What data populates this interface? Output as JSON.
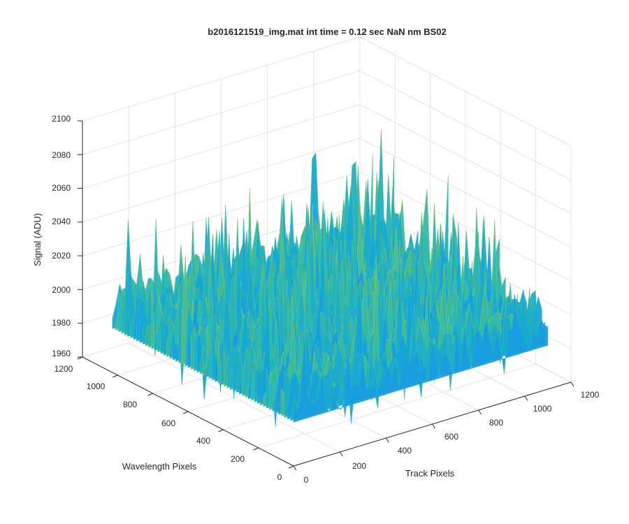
{
  "chart_data": {
    "type": "surface",
    "title": "b2016121519_img.mat int time = 0.12 sec  NaN nm BS02",
    "xlabel": "Track Pixels",
    "ylabel": "Wavelength Pixels",
    "zlabel": "Signal (ADU)",
    "xlim": [
      0,
      1200
    ],
    "ylim": [
      0,
      1200
    ],
    "zlim": [
      1960,
      2100
    ],
    "x_ticks": [
      "0",
      "200",
      "400",
      "600",
      "800",
      "1000",
      "1200"
    ],
    "y_ticks": [
      "0",
      "200",
      "400",
      "600",
      "800",
      "1000",
      "1200"
    ],
    "z_ticks": [
      "1960",
      "1980",
      "2000",
      "2020",
      "2040",
      "2060",
      "2080",
      "2100"
    ],
    "x_extent": [
      0,
      1100
    ],
    "y_extent": [
      0,
      1030
    ],
    "signal_mean": 2000,
    "signal_range": [
      1965,
      2095
    ],
    "grid": true,
    "colormap": "parula"
  }
}
